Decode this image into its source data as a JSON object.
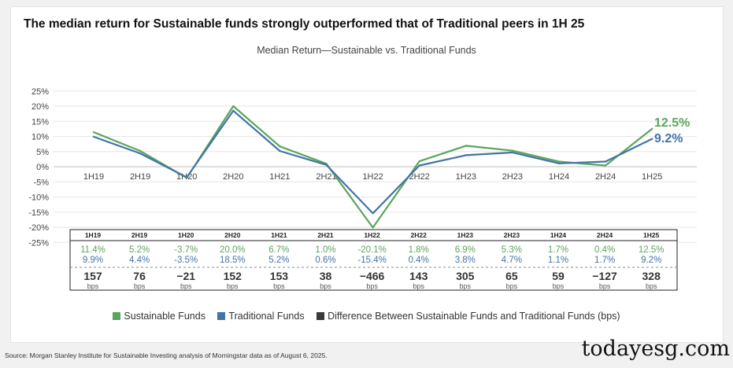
{
  "headline": "The median return for Sustainable funds strongly outperformed that of Traditional peers in 1H 25",
  "source": "Source: Morgan Stanley Institute for Sustainable Investing analysis of Morningstar data as of August 6, 2025.",
  "watermark": "todayesg.com",
  "colors": {
    "sustainable": "#5aa65c",
    "traditional": "#4474a6",
    "difference": "#3a3a3a"
  },
  "chart_data": {
    "type": "line",
    "title": "Median Return—Sustainable vs. Traditional Funds",
    "xlabel": "",
    "ylabel": "",
    "ylim": [
      -25,
      25
    ],
    "y_ticks": [
      "25%",
      "20%",
      "15%",
      "10%",
      "5%",
      "0%",
      "-5%",
      "-10%",
      "-15%",
      "-20%",
      "-25%"
    ],
    "y_tick_values": [
      25,
      20,
      15,
      10,
      5,
      0,
      -5,
      -10,
      -15,
      -20,
      -25
    ],
    "categories": [
      "1H19",
      "2H19",
      "1H20",
      "2H20",
      "1H21",
      "2H21",
      "1H22",
      "2H22",
      "1H23",
      "2H23",
      "1H24",
      "2H24",
      "1H25"
    ],
    "series": [
      {
        "name": "Sustainable Funds",
        "values": [
          11.4,
          5.2,
          -3.7,
          20.0,
          6.7,
          1.0,
          -20.1,
          1.8,
          6.9,
          5.3,
          1.7,
          0.4,
          12.5
        ],
        "labels": [
          "11.4%",
          "5.2%",
          "-3.7%",
          "20.0%",
          "6.7%",
          "1.0%",
          "-20.1%",
          "1.8%",
          "6.9%",
          "5.3%",
          "1.7%",
          "0.4%",
          "12.5%"
        ],
        "end_label": "12.5%"
      },
      {
        "name": "Traditional Funds",
        "values": [
          9.9,
          4.4,
          -3.5,
          18.5,
          5.2,
          0.6,
          -15.4,
          0.4,
          3.8,
          4.7,
          1.1,
          1.7,
          9.2
        ],
        "labels": [
          "9.9%",
          "4.4%",
          "-3.5%",
          "18.5%",
          "5.2%",
          "0.6%",
          "-15.4%",
          "0.4%",
          "3.8%",
          "4.7%",
          "1.1%",
          "1.7%",
          "9.2%"
        ],
        "end_label": "9.2%"
      }
    ],
    "difference": {
      "name": "Difference Between Sustainable Funds and Traditional Funds (bps)",
      "values": [
        157,
        76,
        -21,
        152,
        153,
        38,
        -466,
        143,
        305,
        65,
        59,
        -127,
        328
      ],
      "labels": [
        "157",
        "76",
        "−21",
        "152",
        "153",
        "38",
        "−466",
        "143",
        "305",
        "65",
        "59",
        "−127",
        "328"
      ],
      "unit": "bps"
    },
    "grid": true,
    "legend_position": "bottom"
  }
}
